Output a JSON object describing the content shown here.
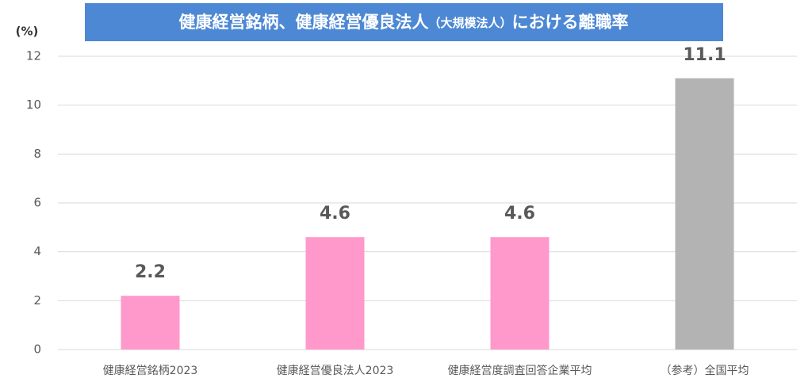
{
  "chart_data": {
    "type": "bar",
    "title": [
      "健康経営銘柄、健康経営優良法人",
      "（大規模法人）",
      "における離職率"
    ],
    "y_label": "(%)",
    "categories": [
      "健康経営銘柄2023",
      "健康経営優良法人2023",
      "健康経営度調査回答企業平均",
      "（参考）全国平均"
    ],
    "values": [
      2.2,
      4.6,
      4.6,
      11.1
    ],
    "colors": [
      "#ff99cc",
      "#ff99cc",
      "#ff99cc",
      "#b3b3b3"
    ],
    "ylim": [
      0,
      12
    ],
    "yticks": [
      0,
      2,
      4,
      6,
      8,
      10,
      12
    ],
    "grid": true
  }
}
